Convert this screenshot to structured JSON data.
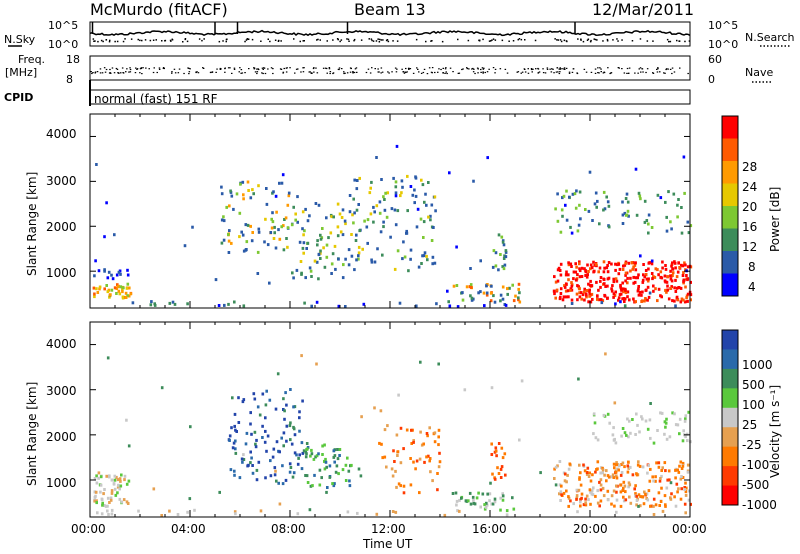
{
  "header": {
    "station": "McMurdo (fitACF)",
    "beam": "Beam 13",
    "date": "12/Mar/2011"
  },
  "top_panels": {
    "nsky_label": "N.Sky",
    "nsearch_label": "N.Search",
    "nsky_ticks": [
      "10^5",
      "10^0"
    ],
    "nsky_right_ticks": [
      "10^5",
      "10^0"
    ],
    "freq_label": "Freq.",
    "freq_unit": "[MHz]",
    "freq_ticks": [
      "18",
      "8"
    ],
    "nave_label": "Nave",
    "nave_ticks": [
      "60",
      "0"
    ],
    "cpid_label": "CPID",
    "cpid_value": "normal (fast) 151 RF"
  },
  "axes": {
    "ylabel": "Slant Range [km]",
    "y_ticks": [
      "4000",
      "3000",
      "2000",
      "1000"
    ],
    "x_ticks": [
      "00:00",
      "04:00",
      "08:00",
      "12:00",
      "16:00",
      "20:00",
      "00:00"
    ],
    "xlabel": "Time UT"
  },
  "power_scale": {
    "label": "Power [dB]",
    "ticks": [
      "28",
      "24",
      "20",
      "16",
      "12",
      "8",
      "4"
    ],
    "colors": [
      "#ff0000",
      "#ff5a00",
      "#ff9a00",
      "#e6c800",
      "#7dc832",
      "#3c8c5a",
      "#2a5aa8",
      "#0000ff"
    ]
  },
  "velocity_scale": {
    "label": "Velocity [m s⁻¹]",
    "ticks": [
      "1000",
      "500",
      "100",
      "25",
      "-25",
      "-100",
      "-500",
      "-1000"
    ],
    "colors": [
      "#2244aa",
      "#2a6aaa",
      "#3c8c5a",
      "#5ac83c",
      "#c8c8c8",
      "#e6a050",
      "#ff7a00",
      "#ff3a00",
      "#ff0000"
    ]
  },
  "chart_data": [
    {
      "type": "heatmap",
      "title": "Power",
      "ylabel": "Slant Range [km]",
      "xlabel": "Time UT",
      "x_range": [
        "00:00",
        "24:00"
      ],
      "ylim": [
        180,
        4500
      ],
      "colorbar": {
        "label": "Power [dB]",
        "range": [
          0,
          32
        ]
      },
      "features": [
        {
          "t0": 0.1,
          "t1": 1.6,
          "r0": 400,
          "r1": 700,
          "level": "high (~20-28 dB)"
        },
        {
          "t0": 5.2,
          "t1": 8.0,
          "r0": 1400,
          "r1": 3000,
          "level": "mixed (~8-20 dB)"
        },
        {
          "t0": 8.0,
          "t1": 10.2,
          "r0": 800,
          "r1": 2500,
          "level": "mixed (~8-20 dB)"
        },
        {
          "t0": 10.3,
          "t1": 13.8,
          "r0": 1000,
          "r1": 3100,
          "level": "mixed (~8-20 dB)"
        },
        {
          "t0": 14.5,
          "t1": 17.2,
          "r0": 300,
          "r1": 700,
          "level": "mixed (~8-24 dB)"
        },
        {
          "t0": 18.5,
          "t1": 24.0,
          "r0": 300,
          "r1": 1200,
          "level": "very high (~24-32 dB)"
        },
        {
          "t0": 18.5,
          "t1": 24.0,
          "r0": 1800,
          "r1": 2800,
          "level": "medium (~8-16 dB)"
        }
      ]
    },
    {
      "type": "heatmap",
      "title": "Velocity",
      "ylabel": "Slant Range [km]",
      "xlabel": "Time UT",
      "x_range": [
        "00:00",
        "24:00"
      ],
      "ylim": [
        180,
        4500
      ],
      "colorbar": {
        "label": "Velocity [m s⁻¹]",
        "range": [
          -1000,
          1000
        ]
      },
      "features": [
        {
          "t0": 0.1,
          "t1": 1.6,
          "r0": 400,
          "r1": 1100,
          "level": "ground scatter (~0)"
        },
        {
          "t0": 5.5,
          "t1": 8.5,
          "r0": 900,
          "r1": 3000,
          "level": "positive (~500-1000)"
        },
        {
          "t0": 8.5,
          "t1": 10.5,
          "r0": 800,
          "r1": 1800,
          "level": "positive (~100-500)"
        },
        {
          "t0": 11.5,
          "t1": 14.0,
          "r0": 700,
          "r1": 2200,
          "level": "negative (~-100 to -500)"
        },
        {
          "t0": 18.5,
          "t1": 24.0,
          "r0": 400,
          "r1": 1400,
          "level": "negative (~-100 to -500)"
        },
        {
          "t0": 20.0,
          "t1": 24.0,
          "r0": 1800,
          "r1": 2500,
          "level": "near zero (-25 to 25)"
        }
      ]
    }
  ]
}
